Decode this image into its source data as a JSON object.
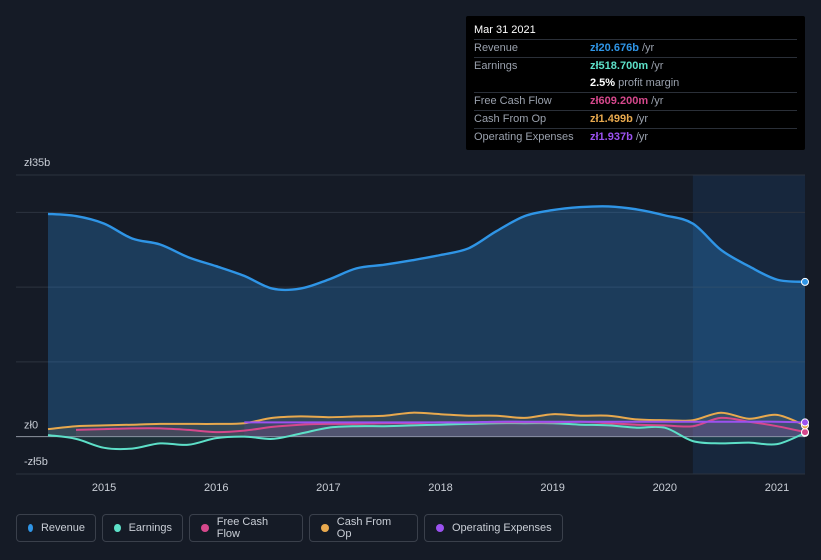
{
  "tooltip": {
    "date": "Mar 31 2021",
    "rows": [
      {
        "label": "Revenue",
        "value": "zł20.676b",
        "unit": "/yr",
        "color": "#2f95e6"
      },
      {
        "label": "Earnings",
        "value": "zł518.700m",
        "unit": "/yr",
        "color": "#5de0c8"
      },
      {
        "label": "",
        "value": "2.5%",
        "unit": "profit margin",
        "color": "#ffffff"
      },
      {
        "label": "Free Cash Flow",
        "value": "zł609.200m",
        "unit": "/yr",
        "color": "#d6488c"
      },
      {
        "label": "Cash From Op",
        "value": "zł1.499b",
        "unit": "/yr",
        "color": "#e8a94e"
      },
      {
        "label": "Operating Expenses",
        "value": "zł1.937b",
        "unit": "/yr",
        "color": "#9b52f0"
      }
    ]
  },
  "legend": [
    {
      "label": "Revenue",
      "color": "#2f95e6"
    },
    {
      "label": "Earnings",
      "color": "#5de0c8"
    },
    {
      "label": "Free Cash Flow",
      "color": "#d6488c"
    },
    {
      "label": "Cash From Op",
      "color": "#e8a94e"
    },
    {
      "label": "Operating Expenses",
      "color": "#9b52f0"
    }
  ],
  "chart_data": {
    "type": "area",
    "ylim": [
      -5,
      35
    ],
    "y_tick_labels": [
      {
        "value": 35,
        "label": "zł35b"
      },
      {
        "value": 0,
        "label": "zł0"
      },
      {
        "value": -5,
        "label": "-zł5b"
      }
    ],
    "gridlines": [
      35,
      30,
      20,
      10,
      0
    ],
    "xlim": [
      2014.5,
      2021.25
    ],
    "x_ticks": [
      2015,
      2016,
      2017,
      2018,
      2019,
      2020,
      2021
    ],
    "x_tick_labels": [
      "2015",
      "2016",
      "2017",
      "2018",
      "2019",
      "2020",
      "2021"
    ],
    "highlight_from": 2020.25,
    "series": [
      {
        "name": "Revenue",
        "color": "#2f95e6",
        "x": [
          2014.5,
          2014.75,
          2015.0,
          2015.25,
          2015.5,
          2015.75,
          2016.0,
          2016.25,
          2016.5,
          2016.75,
          2017.0,
          2017.25,
          2017.5,
          2017.75,
          2018.0,
          2018.25,
          2018.5,
          2018.75,
          2019.0,
          2019.25,
          2019.5,
          2019.75,
          2020.0,
          2020.25,
          2020.5,
          2020.75,
          2021.0,
          2021.25
        ],
        "y": [
          29.8,
          29.5,
          28.5,
          26.5,
          25.7,
          24.0,
          22.8,
          21.5,
          19.8,
          19.8,
          21.0,
          22.5,
          23.0,
          23.6,
          24.3,
          25.2,
          27.5,
          29.5,
          30.3,
          30.7,
          30.8,
          30.4,
          29.6,
          28.5,
          25.0,
          22.8,
          21.0,
          20.7
        ]
      },
      {
        "name": "Earnings",
        "color": "#5de0c8",
        "x": [
          2014.5,
          2014.75,
          2015.0,
          2015.25,
          2015.5,
          2015.75,
          2016.0,
          2016.25,
          2016.5,
          2016.75,
          2017.0,
          2017.25,
          2017.5,
          2017.75,
          2018.0,
          2018.25,
          2018.5,
          2018.75,
          2019.0,
          2019.25,
          2019.5,
          2019.75,
          2020.0,
          2020.25,
          2020.5,
          2020.75,
          2021.0,
          2021.25
        ],
        "y": [
          0.2,
          -0.3,
          -1.5,
          -1.6,
          -0.9,
          -1.1,
          -0.2,
          0.0,
          -0.3,
          0.4,
          1.2,
          1.4,
          1.4,
          1.5,
          1.6,
          1.7,
          1.8,
          1.8,
          1.8,
          1.6,
          1.5,
          1.2,
          1.2,
          -0.6,
          -0.9,
          -0.8,
          -1.0,
          0.5
        ]
      },
      {
        "name": "Free Cash Flow",
        "color": "#d6488c",
        "x": [
          2014.75,
          2015.0,
          2015.25,
          2015.5,
          2015.75,
          2016.0,
          2016.25,
          2016.5,
          2016.75,
          2017.0,
          2017.25,
          2017.5,
          2017.75,
          2018.0,
          2018.25,
          2018.5,
          2018.75,
          2019.0,
          2019.25,
          2019.5,
          2019.75,
          2020.0,
          2020.25,
          2020.5,
          2020.75,
          2021.0,
          2021.25
        ],
        "y": [
          0.9,
          1.0,
          1.1,
          1.1,
          0.9,
          0.6,
          0.8,
          1.3,
          1.6,
          1.7,
          1.7,
          1.8,
          1.8,
          1.9,
          1.9,
          1.9,
          1.9,
          1.9,
          2.0,
          1.8,
          1.6,
          1.5,
          1.4,
          2.5,
          2.0,
          1.4,
          0.6
        ]
      },
      {
        "name": "Cash From Op",
        "color": "#e8a94e",
        "x": [
          2014.5,
          2014.75,
          2015.0,
          2015.25,
          2015.5,
          2015.75,
          2016.0,
          2016.25,
          2016.5,
          2016.75,
          2017.0,
          2017.25,
          2017.5,
          2017.75,
          2018.0,
          2018.25,
          2018.5,
          2018.75,
          2019.0,
          2019.25,
          2019.5,
          2019.75,
          2020.0,
          2020.25,
          2020.5,
          2020.75,
          2021.0,
          2021.25
        ],
        "y": [
          1.0,
          1.4,
          1.5,
          1.6,
          1.7,
          1.7,
          1.7,
          1.8,
          2.5,
          2.7,
          2.6,
          2.7,
          2.8,
          3.2,
          3.0,
          2.8,
          2.8,
          2.5,
          3.0,
          2.8,
          2.8,
          2.3,
          2.2,
          2.2,
          3.2,
          2.4,
          2.9,
          1.5
        ]
      },
      {
        "name": "Operating Expenses",
        "color": "#9b52f0",
        "x": [
          2016.25,
          2016.5,
          2016.75,
          2017.0,
          2017.25,
          2017.5,
          2017.75,
          2018.0,
          2018.25,
          2018.5,
          2018.75,
          2019.0,
          2019.25,
          2019.5,
          2019.75,
          2020.0,
          2020.25,
          2020.5,
          2020.75,
          2021.0,
          2021.25
        ],
        "y": [
          1.9,
          1.9,
          1.9,
          1.9,
          1.9,
          1.9,
          1.9,
          1.9,
          1.9,
          2.0,
          2.0,
          2.0,
          2.0,
          2.0,
          2.0,
          2.0,
          2.0,
          2.0,
          2.0,
          2.0,
          1.9
        ]
      }
    ]
  }
}
